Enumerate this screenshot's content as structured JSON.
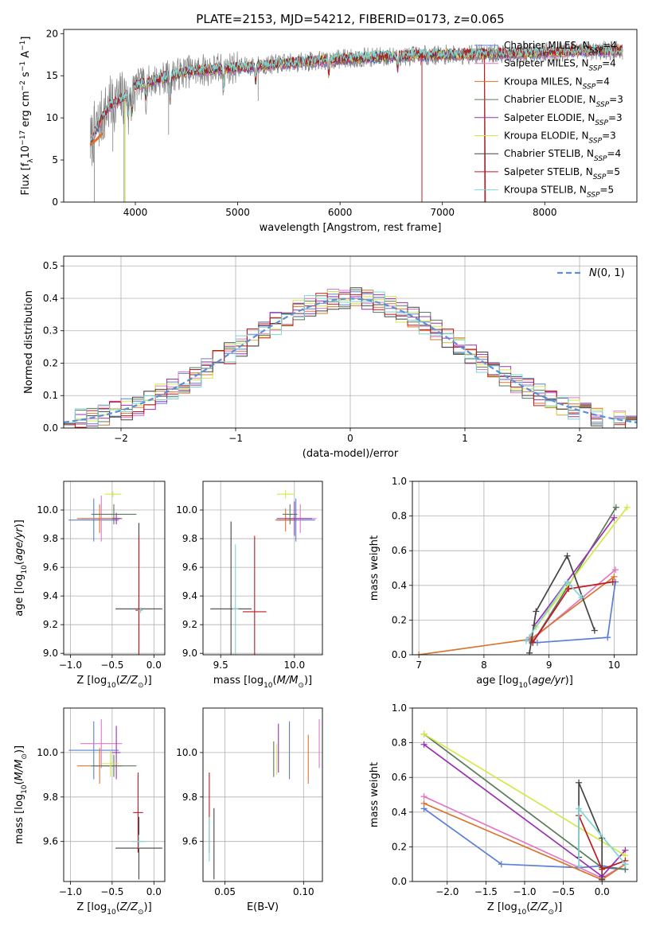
{
  "title": "PLATE=2153, MJD=54212, FIBERID=0173, z=0.065",
  "colors": {
    "chabrier_miles": "#5b7fd6",
    "salpeter_miles": "#e377c2",
    "kroupa_miles": "#d9742f",
    "chabrier_elodie": "#5a7a5a",
    "salpeter_elodie": "#9b30b0",
    "kroupa_elodie": "#d4e84a",
    "chabrier_stelib": "#444444",
    "salpeter_stelib": "#c0191f",
    "kroupa_stelib": "#7fd4d4",
    "obs_spectrum": "#808080",
    "gaussian": "#5b8fd6"
  },
  "chart_data": [
    {
      "id": "spectrum",
      "type": "line",
      "xlabel": "wavelength [Angstrom, rest frame]",
      "ylabel": "Flux [f_λ10^-17 erg cm^-2 s^-1 A^-1]",
      "xlim": [
        3300,
        8900
      ],
      "ylim": [
        0,
        20.5
      ],
      "xticks": [
        4000,
        5000,
        6000,
        7000,
        8000
      ],
      "yticks": [
        0,
        5,
        10,
        15,
        20
      ],
      "continuum": {
        "x": [
          3560,
          3650,
          3750,
          3900,
          4000,
          4200,
          4500,
          5000,
          5500,
          6000,
          6500,
          7000,
          7500,
          8000,
          8500,
          8760
        ],
        "y": [
          7.0,
          9.5,
          11.5,
          12.5,
          13.8,
          14.5,
          15.5,
          16.0,
          16.5,
          17.0,
          17.3,
          17.5,
          17.6,
          17.8,
          18.0,
          18.0
        ]
      },
      "legend_position": "lower-right",
      "legend": [
        {
          "label": "Chabrier MILES, N_SSP=4",
          "key": "chabrier_miles"
        },
        {
          "label": "Salpeter MILES, N_SSP=4",
          "key": "salpeter_miles"
        },
        {
          "label": "Kroupa MILES, N_SSP=4",
          "key": "kroupa_miles"
        },
        {
          "label": "Chabrier ELODIE, N_SSP=3",
          "key": "chabrier_elodie"
        },
        {
          "label": "Salpeter ELODIE, N_SSP=3",
          "key": "salpeter_elodie"
        },
        {
          "label": "Kroupa ELODIE, N_SSP=3",
          "key": "kroupa_elodie"
        },
        {
          "label": "Chabrier STELIB, N_SSP=4",
          "key": "chabrier_stelib"
        },
        {
          "label": "Salpeter STELIB, N_SSP=5",
          "key": "salpeter_stelib"
        },
        {
          "label": "Kroupa STELIB, N_SSP=5",
          "key": "kroupa_stelib"
        }
      ]
    },
    {
      "id": "histogram",
      "type": "line",
      "xlabel": "(data-model)/error",
      "ylabel": "Normed distribution",
      "xlim": [
        -2.5,
        2.5
      ],
      "ylim": [
        0,
        0.53
      ],
      "xticks": [
        -2,
        -1,
        0,
        1,
        2
      ],
      "yticks": [
        0.0,
        0.1,
        0.2,
        0.3,
        0.4,
        0.5
      ],
      "grid": true,
      "legend_label": "N(0,1)",
      "legend_position": "top-right",
      "bin_width": 0.1
    },
    {
      "id": "age_vs_Z",
      "type": "scatter",
      "xlabel": "Z [log10(Z/Z☉)]",
      "ylabel": "age [log10(age/yr)]",
      "xlim": [
        -1.08,
        0.13
      ],
      "ylim": [
        8.99,
        10.2
      ],
      "xticks": [
        -1.0,
        -0.5,
        0.0
      ],
      "yticks": [
        9.0,
        9.2,
        9.4,
        9.6,
        9.8,
        10.0
      ],
      "grid": true,
      "points": [
        {
          "key": "chabrier_miles",
          "x": -0.72,
          "xerr": 0.3,
          "y": 9.93,
          "yerr": 0.15
        },
        {
          "key": "salpeter_miles",
          "x": -0.63,
          "xerr": 0.25,
          "y": 9.94,
          "yerr": 0.16
        },
        {
          "key": "kroupa_miles",
          "x": -0.65,
          "xerr": 0.27,
          "y": 9.94,
          "yerr": 0.1
        },
        {
          "key": "chabrier_elodie",
          "x": -0.48,
          "xerr": 0.27,
          "y": 9.97,
          "yerr": 0.07
        },
        {
          "key": "salpeter_elodie",
          "x": -0.45,
          "xerr": 0.05,
          "y": 9.94,
          "yerr": 0.04
        },
        {
          "key": "kroupa_elodie",
          "x": -0.49,
          "xerr": 0.1,
          "y": 10.11,
          "yerr": 0.02
        },
        {
          "key": "chabrier_stelib",
          "x": -0.18,
          "xerr": 0.28,
          "y": 9.31,
          "yerr": 0.6
        },
        {
          "key": "salpeter_stelib",
          "x": -0.18,
          "xerr": 0.04,
          "y": 9.3,
          "yerr": 0.52
        },
        {
          "key": "kroupa_stelib",
          "x": -0.16,
          "xerr": 0.03,
          "y": 9.3,
          "yerr": 0.02
        }
      ]
    },
    {
      "id": "age_vs_mass",
      "type": "scatter",
      "xlabel": "mass [log10(M/M☉)]",
      "ylabel": "",
      "xlim": [
        9.38,
        10.19
      ],
      "ylim": [
        8.99,
        10.2
      ],
      "xticks": [
        9.5,
        10.0
      ],
      "yticks": [
        9.0,
        9.2,
        9.4,
        9.6,
        9.8,
        10.0
      ],
      "grid": true,
      "points": [
        {
          "key": "chabrier_miles",
          "x": 10.01,
          "xerr": 0.13,
          "y": 9.93,
          "yerr": 0.15
        },
        {
          "key": "salpeter_miles",
          "x": 10.04,
          "xerr": 0.11,
          "y": 9.94,
          "yerr": 0.1
        },
        {
          "key": "kroupa_miles",
          "x": 9.94,
          "xerr": 0.07,
          "y": 9.93,
          "yerr": 0.08
        },
        {
          "key": "chabrier_elodie",
          "x": 9.97,
          "xerr": 0.05,
          "y": 9.97,
          "yerr": 0.07
        },
        {
          "key": "salpeter_elodie",
          "x": 10.0,
          "xerr": 0.12,
          "y": 9.94,
          "yerr": 0.12
        },
        {
          "key": "kroupa_elodie",
          "x": 9.94,
          "xerr": 0.06,
          "y": 10.11,
          "yerr": 0.03
        },
        {
          "key": "chabrier_stelib",
          "x": 9.57,
          "xerr": 0.14,
          "y": 9.31,
          "yerr": 0.61
        },
        {
          "key": "salpeter_stelib",
          "x": 9.73,
          "xerr": 0.08,
          "y": 9.29,
          "yerr": 0.53
        },
        {
          "key": "kroupa_stelib",
          "x": 9.6,
          "xerr": 0.02,
          "y": 9.31,
          "yerr": 0.45
        }
      ]
    },
    {
      "id": "weight_vs_age",
      "type": "line",
      "xlabel": "age [log10(age/yr)]",
      "ylabel": "mass weight",
      "xlim": [
        6.9,
        10.35
      ],
      "ylim": [
        0,
        1.0
      ],
      "xticks": [
        7,
        8,
        9,
        10
      ],
      "yticks": [
        0.0,
        0.2,
        0.4,
        0.6,
        0.8,
        1.0
      ],
      "grid": true,
      "series": [
        {
          "key": "chabrier_miles",
          "x": [
            8.7,
            8.82,
            9.9,
            10.02
          ],
          "y": [
            0.08,
            0.07,
            0.1,
            0.42
          ]
        },
        {
          "key": "salpeter_miles",
          "x": [
            8.7,
            8.75,
            10.02
          ],
          "y": [
            0.1,
            0.09,
            0.49
          ]
        },
        {
          "key": "kroupa_miles",
          "x": [
            7.0,
            8.72,
            10.0
          ],
          "y": [
            0.0,
            0.09,
            0.45
          ]
        },
        {
          "key": "chabrier_elodie",
          "x": [
            8.75,
            9.3,
            10.03
          ],
          "y": [
            0.07,
            0.4,
            0.85
          ]
        },
        {
          "key": "salpeter_elodie",
          "x": [
            8.78,
            10.0
          ],
          "y": [
            0.17,
            0.79
          ]
        },
        {
          "key": "kroupa_elodie",
          "x": [
            8.8,
            10.2
          ],
          "y": [
            0.16,
            0.85
          ]
        },
        {
          "key": "chabrier_stelib",
          "x": [
            8.7,
            8.8,
            9.28,
            9.7
          ],
          "y": [
            0.01,
            0.25,
            0.57,
            0.14
          ]
        },
        {
          "key": "salpeter_stelib",
          "x": [
            8.75,
            9.3,
            9.98
          ],
          "y": [
            0.07,
            0.38,
            0.42
          ]
        },
        {
          "key": "kroupa_stelib",
          "x": [
            8.65,
            9.28,
            9.5
          ],
          "y": [
            0.08,
            0.42,
            0.33
          ]
        }
      ]
    },
    {
      "id": "mass_vs_Z",
      "type": "scatter",
      "xlabel": "Z [log10(Z/Z☉)]",
      "ylabel": "mass [log10(M/M☉)]",
      "xlim": [
        -1.08,
        0.13
      ],
      "ylim": [
        9.42,
        10.2
      ],
      "xticks": [
        -1.0,
        -0.5,
        0.0
      ],
      "yticks": [
        9.6,
        9.8,
        10.0
      ],
      "grid": true,
      "points": [
        {
          "key": "chabrier_miles",
          "x": -0.72,
          "xerr": 0.3,
          "y": 10.01,
          "yerr": 0.13
        },
        {
          "key": "salpeter_miles",
          "x": -0.63,
          "xerr": 0.25,
          "y": 10.04,
          "yerr": 0.11
        },
        {
          "key": "kroupa_miles",
          "x": -0.65,
          "xerr": 0.27,
          "y": 9.94,
          "yerr": 0.08
        },
        {
          "key": "chabrier_elodie",
          "x": -0.48,
          "xerr": 0.27,
          "y": 9.94,
          "yerr": 0.05
        },
        {
          "key": "salpeter_elodie",
          "x": -0.45,
          "xerr": 0.05,
          "y": 10.0,
          "yerr": 0.12
        },
        {
          "key": "kroupa_elodie",
          "x": -0.52,
          "xerr": 0.1,
          "y": 9.95,
          "yerr": 0.06
        },
        {
          "key": "chabrier_stelib",
          "x": -0.18,
          "xerr": 0.28,
          "y": 9.57,
          "yerr": 0.14
        },
        {
          "key": "salpeter_stelib",
          "x": -0.19,
          "xerr": 0.06,
          "y": 9.73,
          "yerr": 0.18
        },
        {
          "key": "kroupa_stelib",
          "x": -0.18,
          "xerr": 0.08,
          "y": 9.6,
          "yerr": 0.03
        }
      ]
    },
    {
      "id": "mass_vs_ebv",
      "type": "scatter",
      "xlabel": "E(B-V)",
      "ylabel": "",
      "xlim": [
        0.036,
        0.112
      ],
      "ylim": [
        9.42,
        10.2
      ],
      "xticks": [
        0.05,
        0.1
      ],
      "yticks": [
        9.6,
        9.8,
        10.0
      ],
      "grid": true,
      "points": [
        {
          "key": "chabrier_miles",
          "x": 0.091,
          "y": 10.01,
          "yerr": 0.13
        },
        {
          "key": "salpeter_miles",
          "x": 0.11,
          "y": 10.04,
          "yerr": 0.11
        },
        {
          "key": "kroupa_miles",
          "x": 0.103,
          "y": 9.97,
          "yerr": 0.11
        },
        {
          "key": "chabrier_elodie",
          "x": 0.081,
          "y": 9.97,
          "yerr": 0.08
        },
        {
          "key": "salpeter_elodie",
          "x": 0.084,
          "y": 10.02,
          "yerr": 0.11
        },
        {
          "key": "kroupa_elodie",
          "x": 0.083,
          "y": 9.97,
          "yerr": 0.07
        },
        {
          "key": "chabrier_stelib",
          "x": 0.043,
          "y": 9.59,
          "yerr": 0.16
        },
        {
          "key": "salpeter_stelib",
          "x": 0.04,
          "y": 9.73,
          "yerr": 0.18
        },
        {
          "key": "kroupa_stelib",
          "x": 0.04,
          "y": 9.61,
          "yerr": 0.1
        }
      ]
    },
    {
      "id": "weight_vs_Z",
      "type": "line",
      "xlabel": "Z [log10(Z/Z☉)]",
      "ylabel": "mass weight",
      "xlim": [
        -2.45,
        0.45
      ],
      "ylim": [
        0,
        1.0
      ],
      "xticks": [
        -2.0,
        -1.5,
        -1.0,
        -0.5,
        0.0
      ],
      "yticks": [
        0.0,
        0.2,
        0.4,
        0.6,
        0.8,
        1.0
      ],
      "grid": true,
      "series": [
        {
          "key": "chabrier_miles",
          "x": [
            -2.3,
            -1.3,
            -0.3,
            0.0,
            0.3
          ],
          "y": [
            0.42,
            0.1,
            0.08,
            0.09,
            0.07
          ]
        },
        {
          "key": "salpeter_miles",
          "x": [
            -2.3,
            0.0,
            0.3
          ],
          "y": [
            0.49,
            0.02,
            0.1
          ]
        },
        {
          "key": "kroupa_miles",
          "x": [
            -2.3,
            0.0,
            0.3
          ],
          "y": [
            0.45,
            0.01,
            0.1
          ]
        },
        {
          "key": "chabrier_elodie",
          "x": [
            -2.3,
            0.0,
            0.3
          ],
          "y": [
            0.85,
            0.08,
            0.07
          ]
        },
        {
          "key": "salpeter_elodie",
          "x": [
            -2.3,
            0.0,
            0.3
          ],
          "y": [
            0.79,
            0.03,
            0.18
          ]
        },
        {
          "key": "kroupa_elodie",
          "x": [
            -2.3,
            0.3
          ],
          "y": [
            0.85,
            0.15
          ]
        },
        {
          "key": "chabrier_stelib",
          "x": [
            -0.3,
            -0.3,
            0.0,
            0.0
          ],
          "y": [
            0.14,
            0.57,
            0.25,
            0.01
          ]
        },
        {
          "key": "salpeter_stelib",
          "x": [
            -0.3,
            0.0,
            0.3
          ],
          "y": [
            0.38,
            0.07,
            0.12
          ]
        },
        {
          "key": "kroupa_stelib",
          "x": [
            -0.3,
            -0.3,
            0.3
          ],
          "y": [
            0.09,
            0.42,
            0.1
          ]
        }
      ]
    }
  ]
}
